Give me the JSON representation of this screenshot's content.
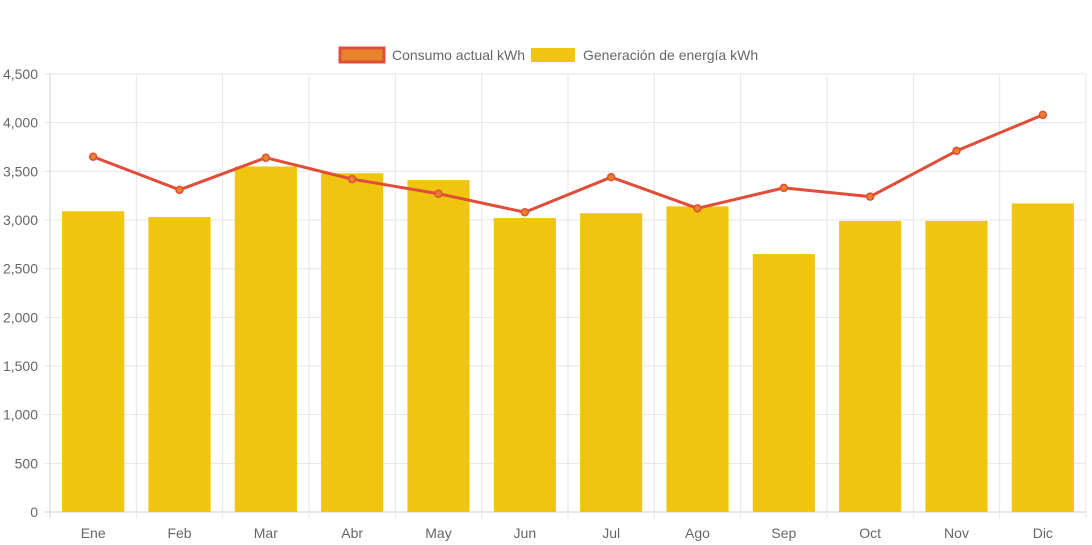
{
  "chart_data": {
    "type": "bar",
    "categories": [
      "Ene",
      "Feb",
      "Mar",
      "Abr",
      "May",
      "Jun",
      "Jul",
      "Ago",
      "Sep",
      "Oct",
      "Nov",
      "Dic"
    ],
    "series": [
      {
        "name": "Consumo actual kWh",
        "type": "line",
        "values": [
          3650,
          3310,
          3640,
          3420,
          3270,
          3080,
          3440,
          3120,
          3330,
          3240,
          3710,
          4080
        ],
        "line_color": "#e04e39",
        "point_color": "#e8832a"
      },
      {
        "name": "Generación de energía kWh",
        "type": "bar",
        "values": [
          3090,
          3030,
          3550,
          3480,
          3410,
          3020,
          3070,
          3140,
          2650,
          2990,
          2990,
          3170
        ],
        "color": "#f0c50f"
      }
    ],
    "y_ticks": [
      "0",
      "500",
      "1,000",
      "1,500",
      "2,000",
      "2,500",
      "3,000",
      "3,500",
      "4,000",
      "4,500"
    ],
    "ylim": [
      0,
      4500
    ],
    "grid": true,
    "legend_position": "top-center"
  }
}
